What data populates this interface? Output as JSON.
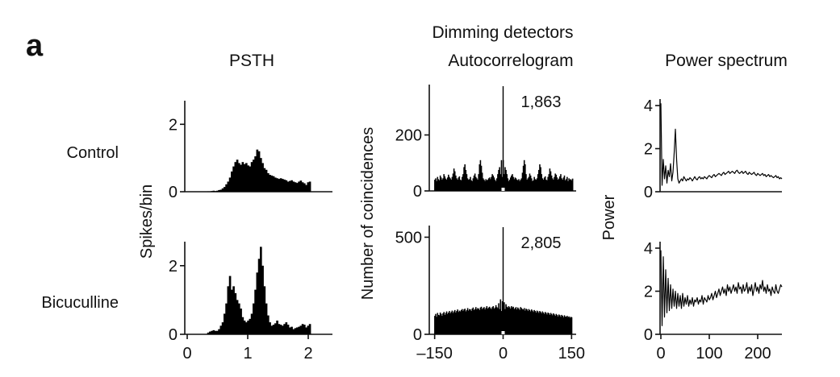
{
  "figure": {
    "panel_letter": "a",
    "group_title": "Dimming detectors",
    "column_titles": {
      "psth": "PSTH",
      "autocorrelogram": "Autocorrelogram",
      "power": "Power spectrum"
    },
    "row_labels": [
      "Control",
      "Bicuculline"
    ],
    "axis_labels": {
      "psth_y": "Spikes/bin",
      "auto_y": "Number of coincidences",
      "power_y": "Power"
    }
  },
  "chart_data": [
    {
      "id": "psth-control",
      "type": "bar",
      "title": "PSTH",
      "row": "Control",
      "ylabel": "Spikes/bin",
      "xlim": [
        0,
        2.4
      ],
      "ylim": [
        0,
        2.7
      ],
      "yticks": [
        0,
        2
      ],
      "ytick_labels": [
        "0",
        "2"
      ],
      "bin_start": 0.33,
      "bin_width": 0.03,
      "values": [
        0.01,
        0.01,
        0.02,
        0.03,
        0.02,
        0.03,
        0.05,
        0.06,
        0.1,
        0.14,
        0.22,
        0.3,
        0.42,
        0.6,
        0.75,
        0.88,
        0.95,
        0.85,
        0.8,
        0.88,
        0.82,
        0.85,
        0.78,
        0.75,
        0.88,
        0.95,
        1.05,
        1.25,
        1.2,
        1.0,
        0.85,
        0.7,
        0.65,
        0.55,
        0.5,
        0.48,
        0.46,
        0.42,
        0.4,
        0.38,
        0.4,
        0.38,
        0.36,
        0.34,
        0.3,
        0.32,
        0.34,
        0.3,
        0.28,
        0.26,
        0.3,
        0.33,
        0.28,
        0.25,
        0.2,
        0.28,
        0.3
      ]
    },
    {
      "id": "psth-bicuculline",
      "type": "bar",
      "row": "Bicuculline",
      "xlim": [
        0,
        2.4
      ],
      "ylim": [
        0,
        2.7
      ],
      "xticks": [
        0,
        1,
        2
      ],
      "xtick_labels": [
        "0",
        "1",
        "2"
      ],
      "yticks": [
        0,
        2
      ],
      "ytick_labels": [
        "0",
        "2"
      ],
      "bin_start": 0.33,
      "bin_width": 0.03,
      "values": [
        0.05,
        0.08,
        0.1,
        0.12,
        0.1,
        0.1,
        0.15,
        0.25,
        0.35,
        0.6,
        0.9,
        1.4,
        1.7,
        1.3,
        1.4,
        1.2,
        1.0,
        0.9,
        0.75,
        0.5,
        0.4,
        0.35,
        0.4,
        0.45,
        0.6,
        0.9,
        1.3,
        1.8,
        2.2,
        2.55,
        2.0,
        1.4,
        0.9,
        0.55,
        0.35,
        0.25,
        0.28,
        0.32,
        0.4,
        0.3,
        0.28,
        0.25,
        0.3,
        0.35,
        0.28,
        0.2,
        0.22,
        0.15,
        0.18,
        0.2,
        0.22,
        0.25,
        0.3,
        0.28,
        0.2,
        0.25,
        0.3
      ]
    },
    {
      "id": "auto-control",
      "type": "bar",
      "title": "Autocorrelogram",
      "row": "Control",
      "ylabel": "Number of coincidences",
      "xlim": [
        -160,
        160
      ],
      "ylim": [
        0,
        380
      ],
      "yticks": [
        0,
        200
      ],
      "ytick_labels": [
        "0",
        "200"
      ],
      "peak_label": "1,863",
      "lag_start": -150,
      "lag_step": 2,
      "center_peak_outside_range": true,
      "values": [
        40,
        45,
        35,
        50,
        42,
        38,
        55,
        48,
        40,
        45,
        60,
        52,
        44,
        40,
        48,
        58,
        50,
        45,
        40,
        50,
        62,
        80,
        70,
        55,
        45,
        40,
        48,
        52,
        40,
        38,
        50,
        60,
        85,
        95,
        75,
        60,
        45,
        40,
        42,
        50,
        38,
        35,
        45,
        55,
        62,
        50,
        45,
        40,
        60,
        95,
        110,
        90,
        65,
        45,
        40,
        35,
        42,
        38,
        40,
        45,
        48,
        42,
        50,
        60,
        55,
        48,
        40,
        35,
        45,
        60,
        75,
        85,
        60,
        110,
        50,
        110,
        60,
        85,
        75,
        60,
        45,
        35,
        40,
        48,
        55,
        60,
        50,
        42,
        48,
        45,
        40,
        38,
        42,
        35,
        40,
        45,
        65,
        90,
        110,
        95,
        60,
        40,
        45,
        50,
        62,
        55,
        45,
        35,
        38,
        50,
        42,
        40,
        45,
        60,
        75,
        95,
        85,
        60,
        45,
        40,
        48,
        52,
        40,
        38,
        50,
        60,
        80,
        70,
        55,
        45,
        40,
        50,
        62,
        58,
        48,
        40,
        44,
        52,
        60,
        45,
        40,
        48,
        55,
        38,
        42,
        50,
        35,
        45,
        40,
        42,
        38,
        44
      ]
    },
    {
      "id": "auto-bicuculline",
      "type": "bar",
      "row": "Bicuculline",
      "xlim": [
        -160,
        160
      ],
      "ylim": [
        0,
        560
      ],
      "xticks": [
        -150,
        0,
        150
      ],
      "xtick_labels": [
        "–150",
        "0",
        "150"
      ],
      "yticks": [
        0,
        500
      ],
      "ytick_labels": [
        "0",
        "500"
      ],
      "peak_label": "2,805",
      "lag_start": -150,
      "lag_step": 2,
      "center_peak_outside_range": true,
      "values": [
        95,
        105,
        90,
        110,
        100,
        98,
        112,
        105,
        95,
        108,
        115,
        100,
        110,
        118,
        105,
        112,
        120,
        108,
        115,
        122,
        110,
        118,
        125,
        112,
        120,
        128,
        115,
        122,
        118,
        125,
        130,
        120,
        128,
        132,
        118,
        125,
        135,
        122,
        130,
        128,
        120,
        132,
        138,
        125,
        130,
        140,
        128,
        135,
        132,
        125,
        138,
        142,
        130,
        135,
        140,
        128,
        136,
        145,
        132,
        138,
        142,
        135,
        130,
        140,
        145,
        132,
        138,
        150,
        140,
        135,
        160,
        130,
        180,
        120,
        170,
        140,
        165,
        130,
        155,
        142,
        138,
        145,
        140,
        132,
        145,
        138,
        142,
        130,
        135,
        140,
        128,
        138,
        132,
        125,
        140,
        135,
        130,
        128,
        135,
        122,
        132,
        128,
        120,
        130,
        125,
        118,
        128,
        122,
        115,
        125,
        120,
        112,
        122,
        118,
        110,
        120,
        115,
        108,
        118,
        112,
        105,
        115,
        110,
        102,
        112,
        108,
        100,
        110,
        105,
        98,
        108,
        102,
        95,
        105,
        100,
        92,
        102,
        98,
        90,
        100,
        95,
        88,
        98,
        92,
        90,
        95,
        88,
        92,
        85,
        90,
        88
      ]
    },
    {
      "id": "power-control",
      "type": "line",
      "title": "Power spectrum",
      "row": "Control",
      "ylabel": "Power",
      "xlim": [
        0,
        250
      ],
      "ylim": [
        0,
        4.3
      ],
      "yticks": [
        0,
        2,
        4
      ],
      "ytick_labels": [
        "0",
        "2",
        "4"
      ],
      "x_start": 0,
      "x_step": 2.5,
      "values": [
        4.1,
        0.3,
        1.5,
        0.6,
        1.2,
        0.4,
        1.0,
        0.7,
        1.3,
        0.5,
        0.9,
        1.8,
        2.9,
        1.5,
        0.6,
        0.4,
        0.5,
        0.6,
        0.5,
        0.7,
        0.6,
        0.5,
        0.6,
        0.55,
        0.65,
        0.6,
        0.5,
        0.6,
        0.7,
        0.6,
        0.55,
        0.65,
        0.7,
        0.6,
        0.65,
        0.6,
        0.7,
        0.65,
        0.6,
        0.7,
        0.75,
        0.7,
        0.65,
        0.75,
        0.8,
        0.7,
        0.75,
        0.8,
        0.85,
        0.8,
        0.75,
        0.85,
        0.9,
        0.8,
        0.85,
        0.9,
        0.95,
        0.85,
        0.9,
        0.95,
        0.9,
        0.85,
        0.95,
        1.0,
        0.9,
        0.85,
        0.9,
        0.95,
        0.85,
        0.9,
        0.95,
        0.85,
        0.8,
        0.9,
        0.85,
        0.8,
        0.85,
        0.9,
        0.8,
        0.75,
        0.85,
        0.8,
        0.75,
        0.8,
        0.85,
        0.75,
        0.8,
        0.7,
        0.75,
        0.8,
        0.7,
        0.75,
        0.7,
        0.65,
        0.7,
        0.75,
        0.65,
        0.7,
        0.6,
        0.65,
        0.6
      ]
    },
    {
      "id": "power-bicuculline",
      "type": "line",
      "row": "Bicuculline",
      "xlim": [
        0,
        250
      ],
      "ylim": [
        0,
        4.3
      ],
      "xticks": [
        0,
        100,
        200
      ],
      "xtick_labels": [
        "0",
        "100",
        "200"
      ],
      "yticks": [
        0,
        2,
        4
      ],
      "ytick_labels": [
        "0",
        "2",
        "4"
      ],
      "x_start": 0,
      "x_step": 2.5,
      "values": [
        3.9,
        0.4,
        3.6,
        0.8,
        3.0,
        1.0,
        2.6,
        1.1,
        2.3,
        1.2,
        2.1,
        1.3,
        2.0,
        1.2,
        1.9,
        1.3,
        1.8,
        1.2,
        1.9,
        1.3,
        1.7,
        1.4,
        1.8,
        1.3,
        1.6,
        1.4,
        1.7,
        1.3,
        1.6,
        1.5,
        1.7,
        1.4,
        1.6,
        1.5,
        1.8,
        1.4,
        1.7,
        1.6,
        1.5,
        1.8,
        1.6,
        1.7,
        1.9,
        1.6,
        1.8,
        2.0,
        1.7,
        1.9,
        2.1,
        1.8,
        2.0,
        2.2,
        1.9,
        2.1,
        1.8,
        2.3,
        2.0,
        2.2,
        1.9,
        2.1,
        2.3,
        2.0,
        2.2,
        1.9,
        2.4,
        2.1,
        2.2,
        1.9,
        2.3,
        2.0,
        2.1,
        2.4,
        1.9,
        2.2,
        2.0,
        2.3,
        1.8,
        2.1,
        2.4,
        2.0,
        2.2,
        1.9,
        2.3,
        2.1,
        2.5,
        2.0,
        2.2,
        1.9,
        2.3,
        2.0,
        2.1,
        1.8,
        2.2,
        2.0,
        1.9,
        2.3,
        2.0,
        1.9,
        2.1,
        2.3,
        2.2
      ]
    }
  ]
}
